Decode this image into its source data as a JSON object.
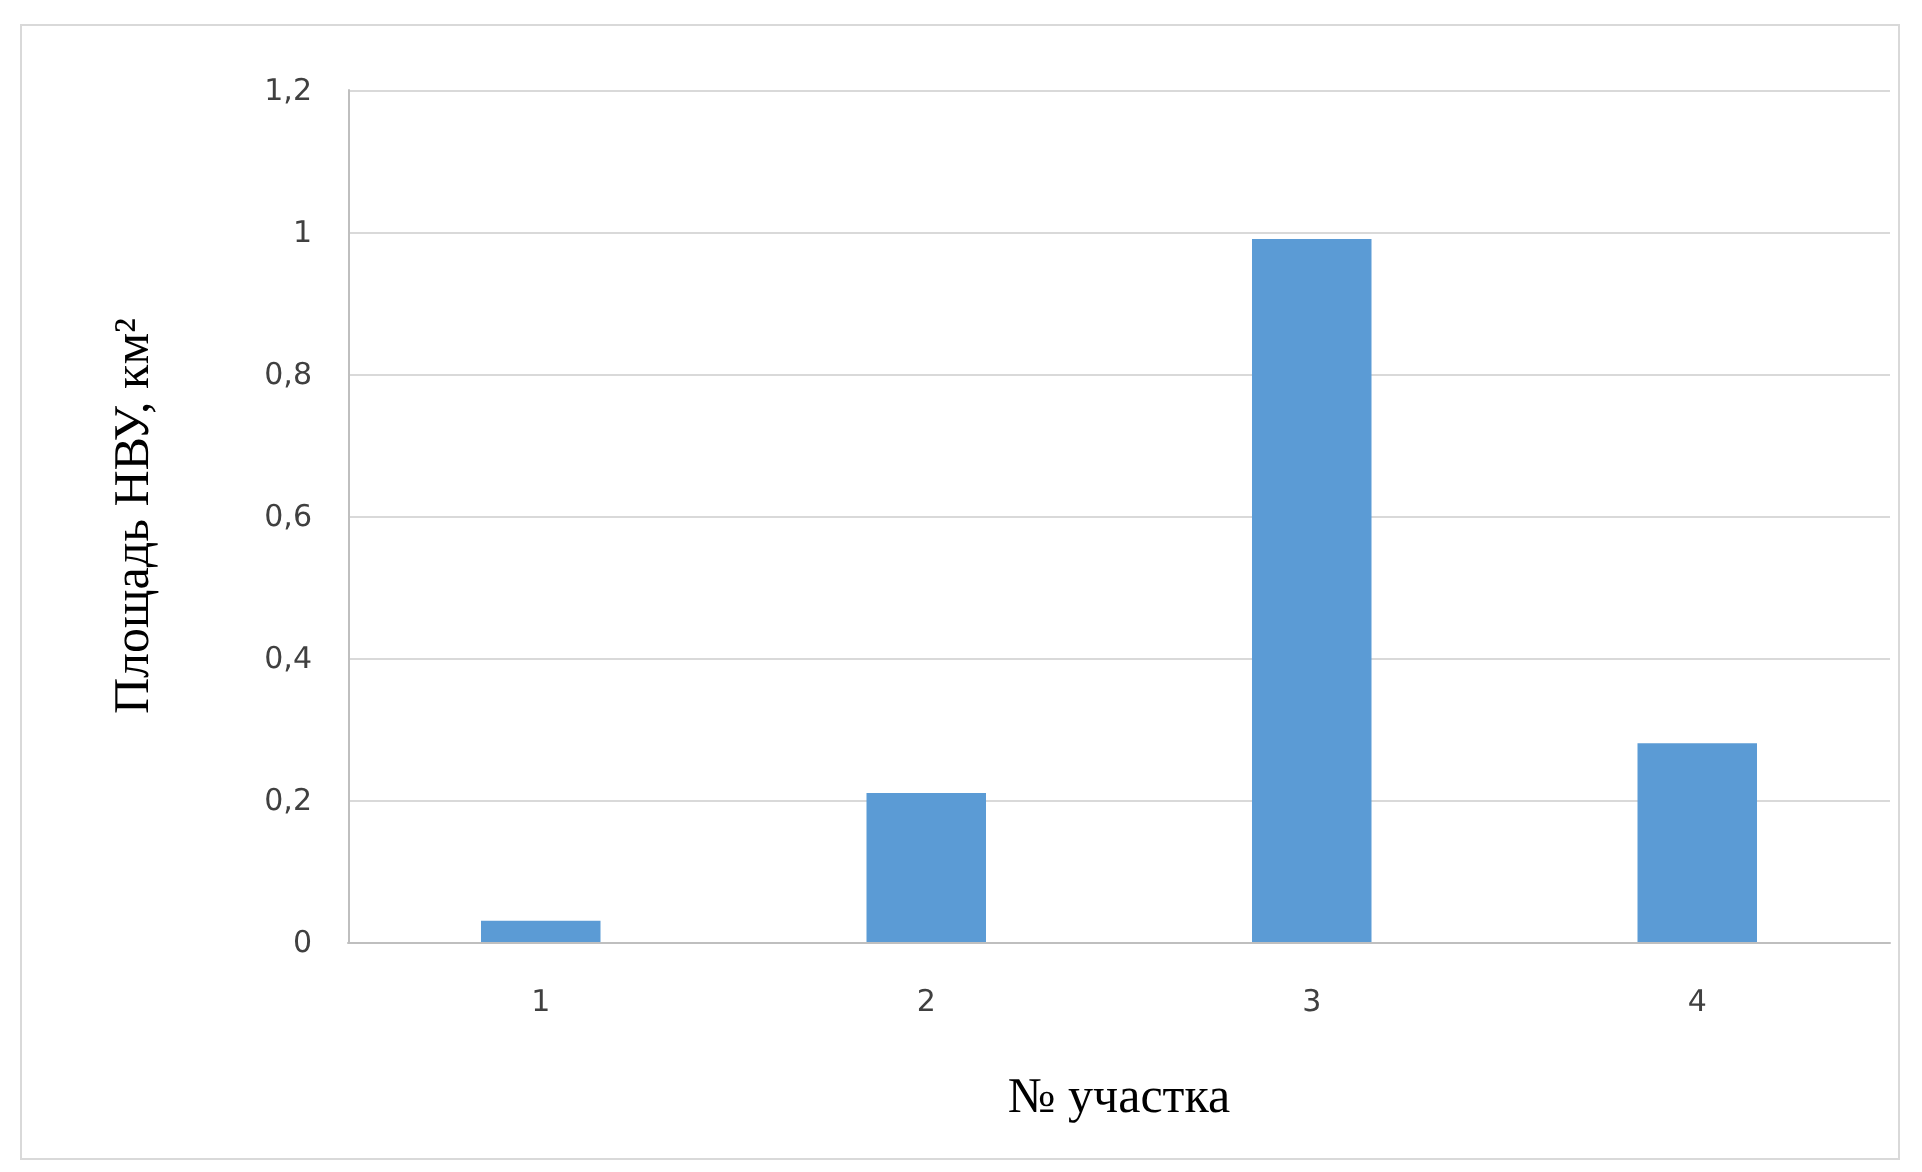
{
  "chart_data": {
    "type": "bar",
    "xlabel": "№ участка",
    "ylabel": "Площадь НВУ, км²",
    "categories": [
      "1",
      "2",
      "3",
      "4"
    ],
    "values": [
      0.03,
      0.21,
      0.99,
      0.28
    ],
    "color": "#5b9bd5",
    "ylim": [
      0,
      1.2
    ],
    "yticks": [
      0,
      {
        "value": 0.2,
        "label": "0,2"
      },
      {
        "value": 0.4,
        "label": "0,4"
      },
      {
        "value": 0.6,
        "label": "0,6"
      },
      {
        "value": 0.8,
        "label": "0,8"
      },
      1,
      {
        "value": 1.2,
        "label": "1,2"
      }
    ],
    "grid": "y"
  }
}
